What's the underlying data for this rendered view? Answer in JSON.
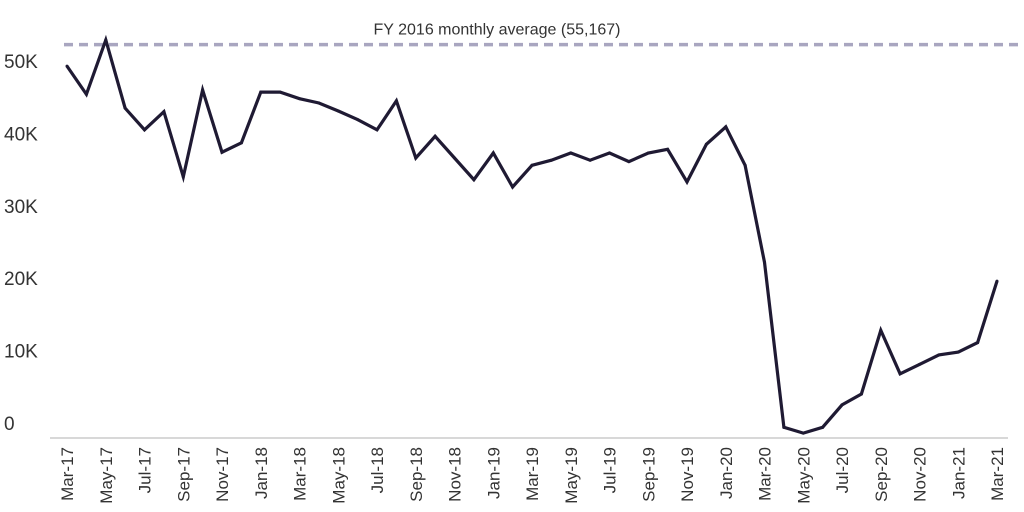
{
  "chart_data": {
    "type": "line",
    "title": "",
    "xlabel": "",
    "ylabel": "",
    "ylim": [
      0,
      55167
    ],
    "grid": false,
    "legend": "none",
    "y_ticks": [
      {
        "value": 0,
        "label": "0"
      },
      {
        "value": 10000,
        "label": "10K"
      },
      {
        "value": 20000,
        "label": "20K"
      },
      {
        "value": 30000,
        "label": "30K"
      },
      {
        "value": 40000,
        "label": "40K"
      },
      {
        "value": 50000,
        "label": "50K"
      }
    ],
    "x": [
      "Mar-17",
      "Apr-17",
      "May-17",
      "Jun-17",
      "Jul-17",
      "Aug-17",
      "Sep-17",
      "Oct-17",
      "Nov-17",
      "Dec-17",
      "Jan-18",
      "Feb-18",
      "Mar-18",
      "Apr-18",
      "May-18",
      "Jun-18",
      "Jul-18",
      "Aug-18",
      "Sep-18",
      "Oct-18",
      "Nov-18",
      "Dec-18",
      "Jan-19",
      "Feb-19",
      "Mar-19",
      "Apr-19",
      "May-19",
      "Jun-19",
      "Jul-19",
      "Aug-19",
      "Sep-19",
      "Oct-19",
      "Nov-19",
      "Dec-19",
      "Jan-20",
      "Feb-20",
      "Mar-20",
      "Apr-20",
      "May-20",
      "Jun-20",
      "Jul-20",
      "Aug-20",
      "Sep-20",
      "Oct-20",
      "Nov-20",
      "Dec-20",
      "Jan-21",
      "Feb-21",
      "Mar-21"
    ],
    "x_tick_labels": [
      "Mar-17",
      "May-17",
      "Jul-17",
      "Sep-17",
      "Nov-17",
      "Jan-18",
      "Mar-18",
      "May-18",
      "Jul-18",
      "Sep-18",
      "Nov-18",
      "Jan-19",
      "Mar-19",
      "May-19",
      "Jul-19",
      "Sep-19",
      "Nov-19",
      "Jan-20",
      "Mar-20",
      "May-20",
      "Jul-20",
      "Sep-20",
      "Nov-20",
      "Jan-21",
      "Mar-21"
    ],
    "series": [
      {
        "values": [
          52200,
          48300,
          55800,
          46400,
          43400,
          45900,
          36900,
          48900,
          40300,
          41600,
          48600,
          48600,
          47700,
          47100,
          46000,
          44800,
          43400,
          47400,
          39500,
          42500,
          39500,
          36500,
          40200,
          35500,
          38500,
          39200,
          40200,
          39200,
          40200,
          39000,
          40200,
          40700,
          36200,
          41400,
          43800,
          38500,
          25100,
          2300,
          1500,
          2300,
          5400,
          6900,
          15700,
          9700,
          11000,
          12300,
          12700,
          14000,
          22500
        ],
        "color": "#1f1a33"
      }
    ],
    "reference_line": {
      "value": 55167,
      "label": "FY 2016 monthly average (55,167)",
      "color": "#a9a6c0",
      "style": "dashed"
    }
  }
}
